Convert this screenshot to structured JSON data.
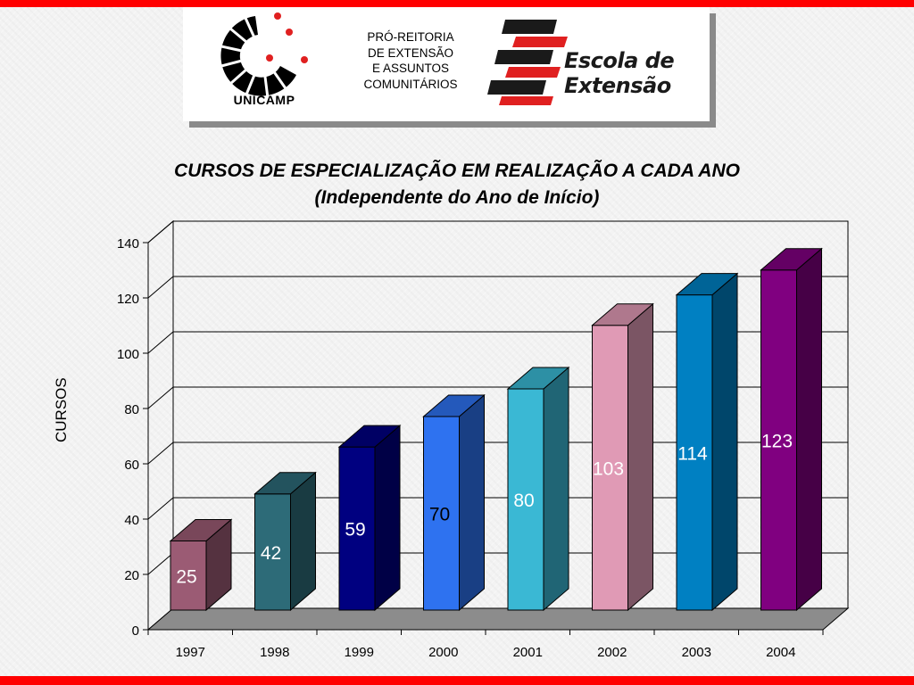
{
  "header": {
    "unicamp_label": "UNICAMP",
    "pro_reitoria_lines": [
      "PRÓ-REITORIA",
      "DE EXTENSÃO",
      "E ASSUNTOS",
      "COMUNITÁRIOS"
    ],
    "escola_lines": [
      "Escola de",
      "Extensão"
    ]
  },
  "colors": {
    "frame_red": "#ff0000",
    "stripe_red": "#e02020",
    "stripe_black": "#1a1a1a"
  },
  "chart_data": {
    "type": "bar",
    "title": "CURSOS DE ESPECIALIZAÇÃO EM REALIZAÇÃO A CADA ANO",
    "subtitle": "(Independente do Ano de Início)",
    "xlabel": "",
    "ylabel": "CURSOS",
    "categories": [
      "1997",
      "1998",
      "1999",
      "2000",
      "2001",
      "2002",
      "2003",
      "2004"
    ],
    "values": [
      25,
      42,
      59,
      70,
      80,
      103,
      114,
      123
    ],
    "ylim": [
      0,
      140
    ],
    "yticks": [
      0,
      20,
      40,
      60,
      80,
      100,
      120,
      140
    ],
    "grid": true,
    "style": "3d-columns",
    "bar_colors": [
      "#9b5b74",
      "#2d6b78",
      "#000080",
      "#2e72f0",
      "#3ab8d4",
      "#e09ab5",
      "#0080c2",
      "#800080"
    ],
    "label_colors": [
      "#ffffff",
      "#ffffff",
      "#ffffff",
      "#000000",
      "#ffffff",
      "#ffffff",
      "#ffffff",
      "#ffffff"
    ]
  }
}
